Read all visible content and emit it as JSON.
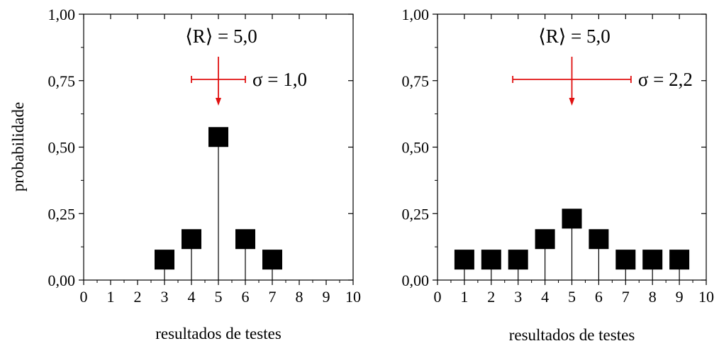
{
  "chart_data": [
    {
      "type": "scatter",
      "style": "stem plot with square markers",
      "xlabel": "resultados de testes",
      "ylabel": "probabilidade",
      "xlim": [
        0,
        10
      ],
      "ylim": [
        0,
        1
      ],
      "xticks": [
        "0",
        "1",
        "2",
        "3",
        "4",
        "5",
        "6",
        "7",
        "8",
        "9",
        "10"
      ],
      "yticks": [
        "0,00",
        "0,25",
        "0,50",
        "0,75",
        "1,00"
      ],
      "x": [
        3,
        4,
        5,
        6,
        7
      ],
      "y": [
        0.077,
        0.154,
        0.538,
        0.154,
        0.077
      ],
      "mean_label": "⟨R⟩ = 5,0",
      "sigma_label": "σ = 1,0",
      "mean": 5.0,
      "sigma": 1.0,
      "annotation_color": "#e01010",
      "marker_color": "#000000"
    },
    {
      "type": "scatter",
      "style": "stem plot with square markers",
      "xlabel": "resultados de testes",
      "ylabel": "",
      "xlim": [
        0,
        10
      ],
      "ylim": [
        0,
        1
      ],
      "xticks": [
        "0",
        "1",
        "2",
        "3",
        "4",
        "5",
        "6",
        "7",
        "8",
        "9",
        "10"
      ],
      "yticks": [
        "0,00",
        "0,25",
        "0,50",
        "0,75",
        "1,00"
      ],
      "x": [
        1,
        2,
        3,
        4,
        5,
        6,
        7,
        8,
        9
      ],
      "y": [
        0.077,
        0.077,
        0.077,
        0.154,
        0.231,
        0.154,
        0.077,
        0.077,
        0.077
      ],
      "mean_label": "⟨R⟩ = 5,0",
      "sigma_label": "σ = 2,2",
      "mean": 5.0,
      "sigma": 2.2,
      "annotation_color": "#e01010",
      "marker_color": "#000000"
    }
  ]
}
